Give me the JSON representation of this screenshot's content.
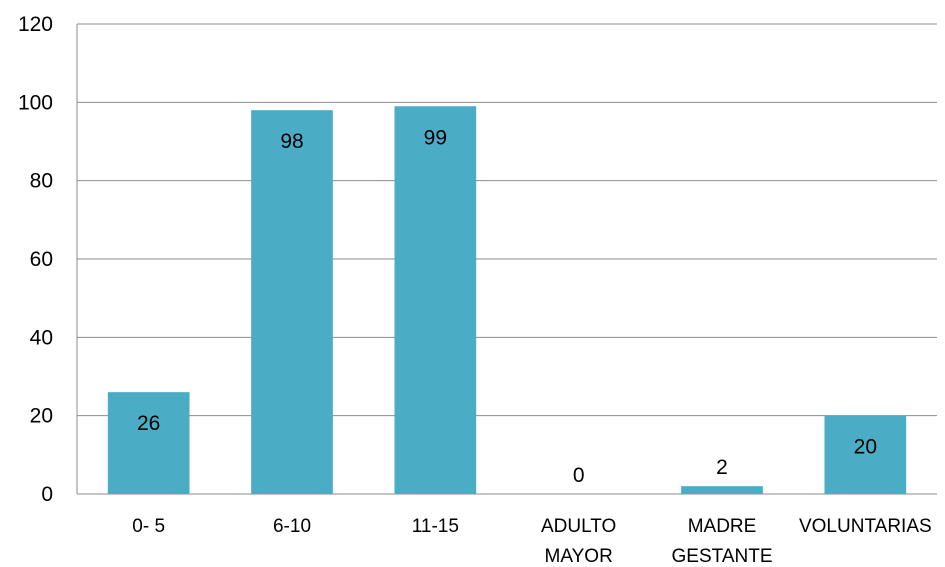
{
  "chart_data": {
    "type": "bar",
    "categories": [
      [
        "0- 5"
      ],
      [
        "6-10"
      ],
      [
        "11-15"
      ],
      [
        "ADULTO",
        "MAYOR"
      ],
      [
        "MADRE",
        "GESTANTE"
      ],
      [
        "VOLUNTARIAS"
      ]
    ],
    "values": [
      26,
      98,
      99,
      0,
      2,
      20
    ],
    "data_labels": [
      "26",
      "98",
      "99",
      "0",
      "2",
      "20"
    ],
    "ylim": [
      0,
      120
    ],
    "yticks": [
      0,
      20,
      40,
      60,
      80,
      100,
      120
    ],
    "grid": true,
    "legend": "none",
    "colors": {
      "bar": "#4BACC6",
      "grid": "#8C8C8C",
      "axis": "#8C8C8C"
    }
  }
}
